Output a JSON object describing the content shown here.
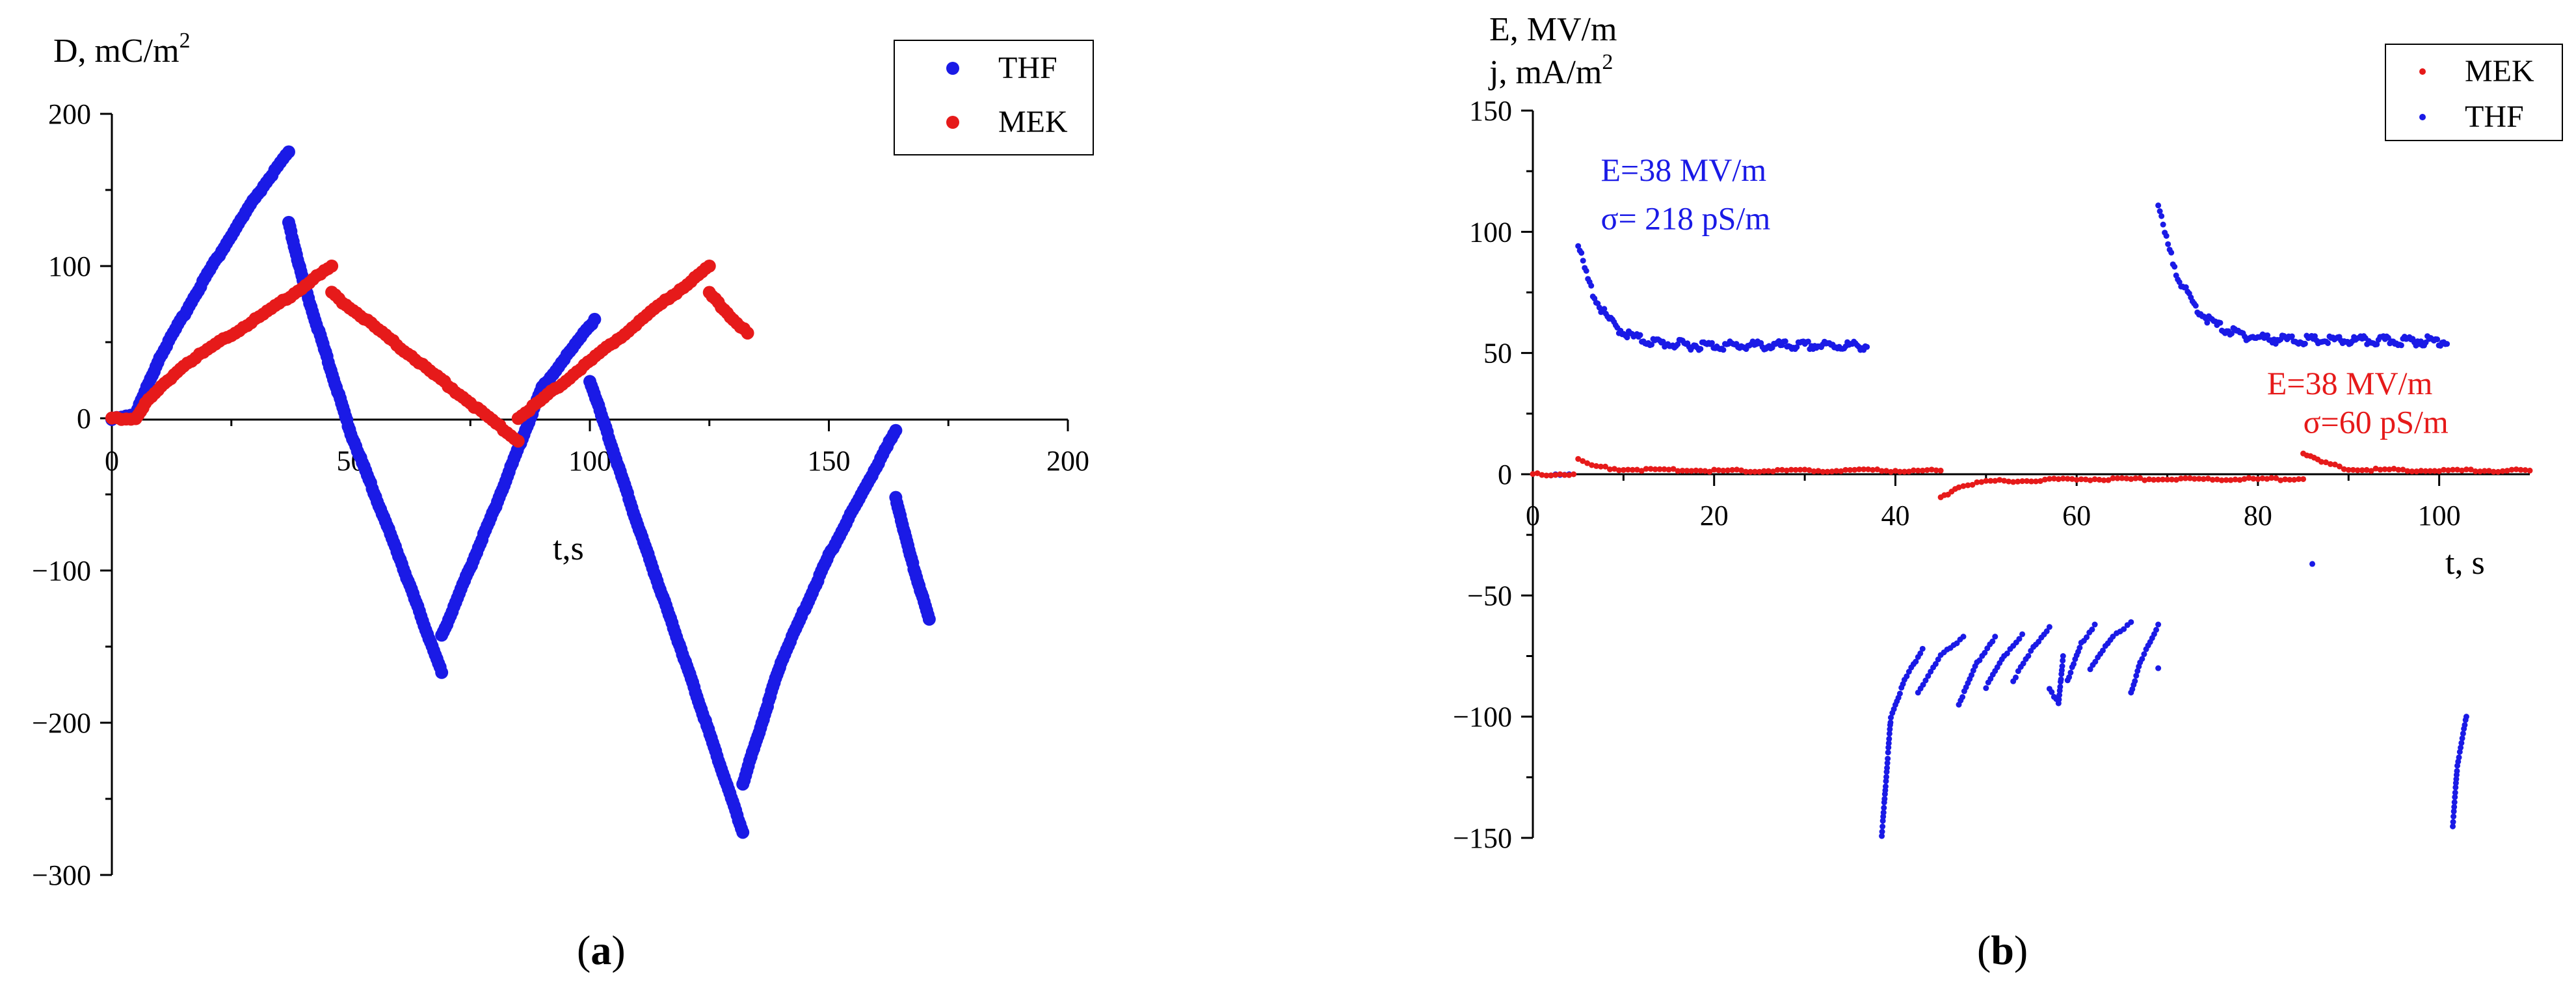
{
  "chart_data": [
    {
      "id": "a",
      "type": "scatter",
      "caption": "(a)",
      "ylabel_prefix": "D, mC/m",
      "ylabel_sup": "2",
      "xlabel": "t,s",
      "xlim": [
        0,
        200
      ],
      "ylim": [
        -300,
        200
      ],
      "xticks": [
        0,
        50,
        100,
        150,
        200
      ],
      "xtick_labels": [
        "0",
        "50",
        "100",
        "150",
        "200"
      ],
      "yticks": [
        200,
        100,
        0,
        -100,
        -200,
        -300
      ],
      "ytick_labels": [
        "200",
        "100",
        "0",
        "−100",
        "−200",
        "−300"
      ],
      "legend": [
        {
          "label": "THF",
          "color": "#1a1ae6"
        },
        {
          "label": "MEK",
          "color": "#e61a1a"
        }
      ],
      "series": [
        {
          "name": "THF",
          "color": "#1a1ae6",
          "segments": [
            [
              [
                0,
                0
              ],
              [
                5,
                3
              ],
              [
                10,
                40
              ],
              [
                20,
                95
              ],
              [
                30,
                145
              ],
              [
                37,
                175
              ]
            ],
            [
              [
                37,
                128
              ],
              [
                40,
                90
              ],
              [
                45,
                40
              ],
              [
                50,
                -10
              ],
              [
                60,
                -90
              ],
              [
                69,
                -167
              ]
            ],
            [
              [
                69,
                -143
              ],
              [
                80,
                -60
              ],
              [
                90,
                20
              ],
              [
                101,
                65
              ]
            ],
            [
              [
                100,
                25
              ],
              [
                110,
                -70
              ],
              [
                120,
                -160
              ],
              [
                132,
                -272
              ]
            ],
            [
              [
                132,
                -240
              ],
              [
                140,
                -160
              ],
              [
                150,
                -90
              ],
              [
                164,
                -8
              ]
            ],
            [
              [
                164,
                -52
              ],
              [
                167,
                -90
              ],
              [
                171,
                -132
              ]
            ]
          ]
        },
        {
          "name": "MEK",
          "color": "#e61a1a",
          "segments": [
            [
              [
                0,
                0
              ],
              [
                5,
                0
              ],
              [
                7,
                10
              ],
              [
                15,
                35
              ],
              [
                25,
                55
              ],
              [
                35,
                75
              ],
              [
                46,
                100
              ]
            ],
            [
              [
                46,
                82
              ],
              [
                55,
                60
              ],
              [
                65,
                35
              ],
              [
                75,
                10
              ],
              [
                85,
                -15
              ]
            ],
            [
              [
                85,
                0
              ],
              [
                95,
                25
              ],
              [
                105,
                50
              ],
              [
                115,
                75
              ],
              [
                125,
                100
              ]
            ],
            [
              [
                125,
                82
              ],
              [
                130,
                65
              ],
              [
                133,
                56
              ]
            ]
          ]
        }
      ]
    },
    {
      "id": "b",
      "type": "scatter",
      "caption": "(b)",
      "ylabel_line1": "E, MV/m",
      "ylabel_line2_prefix": "j, mA/m",
      "ylabel_line2_sup": "2",
      "xlabel": "t, s",
      "xlim": [
        0,
        110
      ],
      "ylim": [
        -150,
        150
      ],
      "xticks": [
        0,
        20,
        40,
        60,
        80,
        100
      ],
      "xtick_labels": [
        "0",
        "20",
        "40",
        "60",
        "80",
        "100"
      ],
      "yticks": [
        150,
        100,
        50,
        0,
        -50,
        -100,
        -150
      ],
      "ytick_labels": [
        "150",
        "100",
        "50",
        "0",
        "−50",
        "−100",
        "−150"
      ],
      "legend": [
        {
          "label": "MEK",
          "color": "#e61a1a"
        },
        {
          "label": "THF",
          "color": "#1a1ae6"
        }
      ],
      "annotations": [
        {
          "text": "E=38 MV/m",
          "color": "#1a1ae6",
          "x": 7.5,
          "y": 121
        },
        {
          "text": "σ= 218 pS/m",
          "color": "#1a1ae6",
          "x": 7.5,
          "y": 101
        },
        {
          "text": "E=38 MV/m",
          "color": "#e61a1a",
          "x": 81,
          "y": 33
        },
        {
          "text": "σ=60 pS/m",
          "color": "#e61a1a",
          "x": 85,
          "y": 17
        }
      ],
      "series": [
        {
          "name": "THF",
          "color": "#1a1ae6",
          "decays": [
            {
              "t0": 5,
              "t1": 37,
              "amp": 95,
              "base": 53,
              "tau": 2.5
            },
            {
              "t0": 69,
              "t1": 101,
              "amp": 111,
              "base": 55,
              "tau": 3
            }
          ],
          "segments": [
            [
              [
                2,
                0
              ],
              [
                4,
                0
              ]
            ],
            [
              [
                38.5,
                -149
              ],
              [
                39.5,
                -100
              ],
              [
                41,
                -85
              ],
              [
                43,
                -72
              ]
            ],
            [
              [
                42.5,
                -90
              ],
              [
                45,
                -75
              ],
              [
                47.5,
                -67
              ]
            ],
            [
              [
                47,
                -95
              ],
              [
                49,
                -78
              ],
              [
                51,
                -67
              ]
            ],
            [
              [
                50,
                -88
              ],
              [
                52,
                -75
              ],
              [
                54,
                -66
              ]
            ],
            [
              [
                53,
                -85
              ],
              [
                55.5,
                -70
              ],
              [
                57,
                -63
              ]
            ],
            [
              [
                57,
                -88
              ],
              [
                58,
                -95
              ],
              [
                58.5,
                -75
              ]
            ],
            [
              [
                59,
                -85
              ],
              [
                60.5,
                -70
              ],
              [
                62,
                -62
              ]
            ],
            [
              [
                61.5,
                -80
              ],
              [
                64,
                -67
              ],
              [
                66,
                -61
              ]
            ],
            [
              [
                66,
                -90
              ],
              [
                67,
                -78
              ],
              [
                69,
                -62
              ]
            ],
            [
              [
                69,
                -80
              ]
            ],
            [
              [
                86,
                -37
              ]
            ],
            [
              [
                101.5,
                -145
              ],
              [
                102,
                -120
              ],
              [
                103,
                -100
              ]
            ]
          ]
        },
        {
          "name": "MEK",
          "color": "#e61a1a",
          "segments": [
            [
              [
                0,
                0
              ],
              [
                4.5,
                0
              ]
            ],
            [
              [
                5,
                6
              ],
              [
                7,
                3
              ],
              [
                10,
                2
              ],
              [
                20,
                1.5
              ],
              [
                30,
                1.5
              ],
              [
                45,
                1.5
              ]
            ],
            [
              [
                45,
                -10
              ],
              [
                47,
                -5
              ],
              [
                50,
                -3
              ],
              [
                60,
                -2
              ],
              [
                70,
                -2
              ],
              [
                85,
                -2
              ]
            ],
            [
              [
                85,
                9
              ],
              [
                87,
                5
              ],
              [
                90,
                2
              ],
              [
                100,
                1.5
              ],
              [
                110,
                1.5
              ]
            ]
          ]
        }
      ]
    }
  ]
}
